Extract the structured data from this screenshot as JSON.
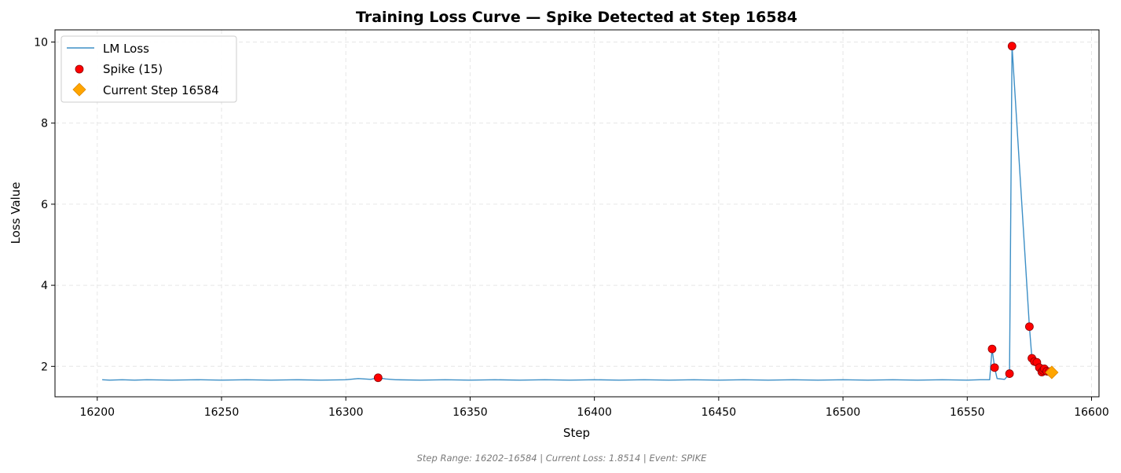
{
  "chart_data": {
    "type": "line",
    "title": "Training Loss Curve — Spike Detected at Step 16584",
    "xlabel": "Step",
    "ylabel": "Loss Value",
    "xlim": [
      16183,
      16603
    ],
    "ylim": [
      1.25,
      10.3
    ],
    "xticks": [
      16200,
      16250,
      16300,
      16350,
      16400,
      16450,
      16500,
      16550,
      16600
    ],
    "yticks": [
      2,
      4,
      6,
      8,
      10
    ],
    "grid": true,
    "legend_position": "top-left",
    "colors": {
      "line": "#3d8fc6",
      "spike": "#ff0000",
      "spike_edge": "#8b0000",
      "current": "#ffa500",
      "current_edge": "#e08a00"
    },
    "series": [
      {
        "name": "LM Loss",
        "kind": "line",
        "x": [
          16202,
          16205,
          16210,
          16215,
          16220,
          16230,
          16240,
          16250,
          16260,
          16270,
          16280,
          16290,
          16300,
          16305,
          16310,
          16313,
          16316,
          16320,
          16330,
          16340,
          16350,
          16360,
          16370,
          16380,
          16390,
          16400,
          16410,
          16420,
          16430,
          16440,
          16450,
          16460,
          16470,
          16480,
          16490,
          16500,
          16510,
          16520,
          16530,
          16540,
          16550,
          16555,
          16559,
          16560,
          16561,
          16562,
          16565,
          16567,
          16568,
          16575,
          16576,
          16577,
          16578,
          16579,
          16580,
          16581,
          16582,
          16583,
          16584
        ],
        "y": [
          1.67,
          1.66,
          1.67,
          1.66,
          1.67,
          1.66,
          1.67,
          1.66,
          1.67,
          1.66,
          1.67,
          1.66,
          1.67,
          1.7,
          1.68,
          1.72,
          1.69,
          1.67,
          1.66,
          1.67,
          1.66,
          1.67,
          1.66,
          1.67,
          1.66,
          1.67,
          1.66,
          1.67,
          1.66,
          1.67,
          1.66,
          1.67,
          1.66,
          1.67,
          1.66,
          1.67,
          1.66,
          1.67,
          1.66,
          1.67,
          1.66,
          1.67,
          1.67,
          2.43,
          1.97,
          1.7,
          1.68,
          1.82,
          9.9,
          2.98,
          2.2,
          2.12,
          2.1,
          1.97,
          1.86,
          1.94,
          1.88,
          1.87,
          1.85
        ]
      },
      {
        "name": "Spike (15)",
        "kind": "scatter",
        "x": [
          16313,
          16560,
          16561,
          16567,
          16568,
          16575,
          16576,
          16577,
          16578,
          16579,
          16580,
          16580.5,
          16581,
          16582,
          16583
        ],
        "y": [
          1.72,
          2.43,
          1.97,
          1.82,
          9.9,
          2.98,
          2.2,
          2.12,
          2.1,
          1.97,
          1.86,
          1.9,
          1.94,
          1.88,
          1.87
        ]
      },
      {
        "name": "Current Step 16584",
        "kind": "marker",
        "x": [
          16584
        ],
        "y": [
          1.8514
        ]
      }
    ],
    "footer": "Step Range: 16202–16584 | Current Loss: 1.8514 | Event: SPIKE"
  }
}
